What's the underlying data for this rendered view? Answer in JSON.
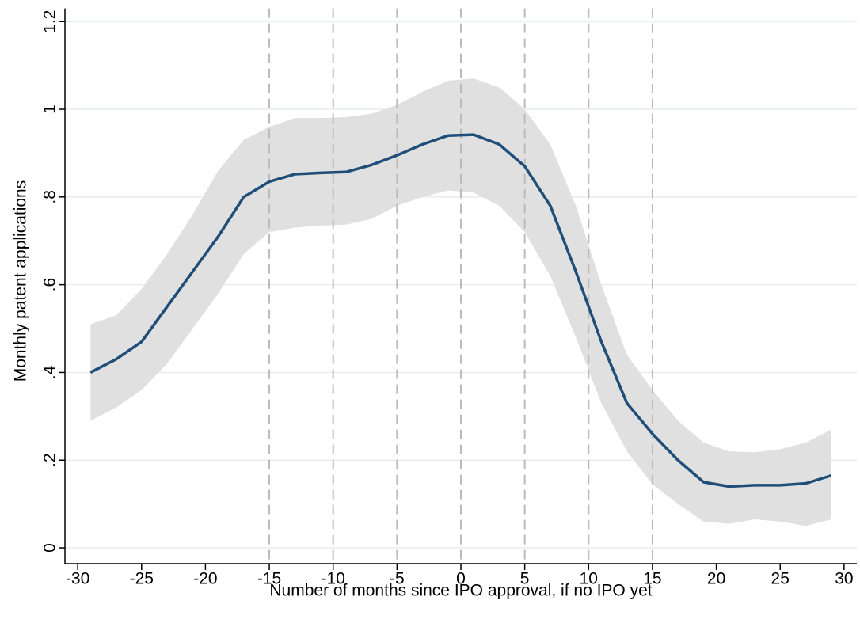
{
  "chart_data": {
    "type": "line",
    "x_label": "Number of months since IPO approval, if no IPO yet",
    "y_label": "Monthly patent applications",
    "x": [
      -29,
      -27,
      -25,
      -23,
      -21,
      -19,
      -17,
      -15,
      -13,
      -11,
      -9,
      -7,
      -5,
      -3,
      -1,
      1,
      3,
      5,
      7,
      9,
      11,
      13,
      15,
      17,
      19,
      21,
      23,
      25,
      27,
      29
    ],
    "values": [
      0.4,
      0.43,
      0.47,
      0.55,
      0.63,
      0.71,
      0.8,
      0.835,
      0.852,
      0.855,
      0.857,
      0.873,
      0.895,
      0.92,
      0.94,
      0.942,
      0.92,
      0.87,
      0.78,
      0.63,
      0.47,
      0.33,
      0.26,
      0.2,
      0.15,
      0.14,
      0.143,
      0.143,
      0.147,
      0.165
    ],
    "ci_upper": [
      0.51,
      0.53,
      0.59,
      0.67,
      0.76,
      0.86,
      0.93,
      0.96,
      0.98,
      0.98,
      0.982,
      0.99,
      1.01,
      1.04,
      1.065,
      1.07,
      1.05,
      1.0,
      0.92,
      0.78,
      0.6,
      0.44,
      0.36,
      0.29,
      0.24,
      0.22,
      0.218,
      0.225,
      0.24,
      0.27
    ],
    "ci_lower": [
      0.29,
      0.32,
      0.36,
      0.42,
      0.5,
      0.58,
      0.67,
      0.72,
      0.73,
      0.735,
      0.737,
      0.75,
      0.78,
      0.8,
      0.815,
      0.81,
      0.78,
      0.72,
      0.62,
      0.48,
      0.33,
      0.22,
      0.145,
      0.1,
      0.06,
      0.055,
      0.065,
      0.06,
      0.05,
      0.065
    ],
    "color": "#1f4e79",
    "band_color": "#e0e0e0",
    "xlim": [
      -31,
      31
    ],
    "xticks": [
      -30,
      -25,
      -20,
      -15,
      -10,
      -5,
      0,
      5,
      10,
      15,
      20,
      25,
      30
    ],
    "ylim": [
      -0.036,
      1.23
    ],
    "yticks": [
      0,
      {
        "value": 0.2,
        "label": ".2"
      },
      {
        "value": 0.4,
        "label": ".4"
      },
      {
        "value": 0.6,
        "label": ".6"
      },
      {
        "value": 0.8,
        "label": ".8"
      },
      1,
      1.2
    ],
    "vlines": [
      -15,
      -10,
      -5,
      0,
      5,
      10,
      15
    ],
    "grid": true
  }
}
